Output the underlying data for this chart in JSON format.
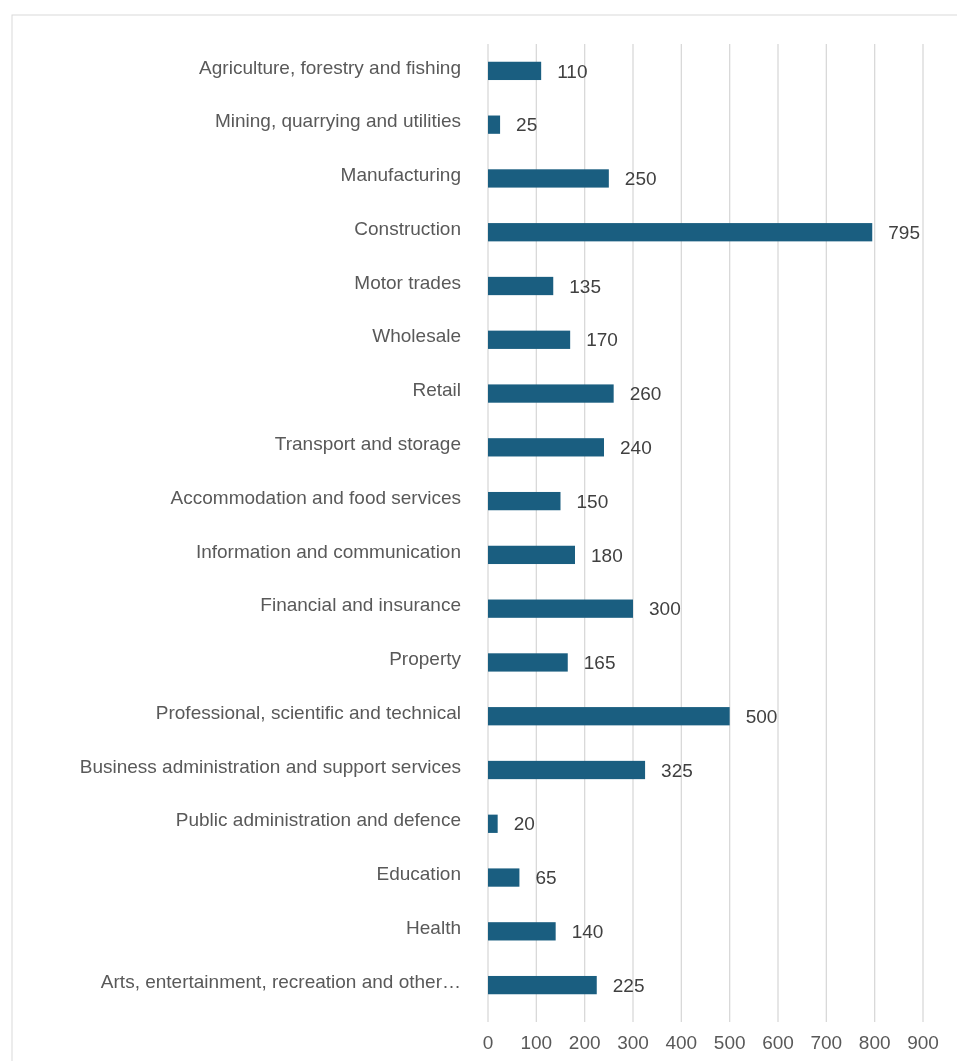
{
  "chart_data": {
    "type": "bar",
    "orientation": "horizontal",
    "categories": [
      "Agriculture, forestry and fishing",
      "Mining, quarrying and utilities",
      "Manufacturing",
      "Construction",
      "Motor trades",
      "Wholesale",
      "Retail",
      "Transport and storage",
      "Accommodation and food services",
      "Information and communication",
      "Financial and insurance",
      "Property",
      "Professional, scientific and technical",
      "Business administration and support services",
      "Public administration and defence",
      "Education",
      "Health",
      "Arts, entertainment, recreation and other…"
    ],
    "values": [
      110,
      25,
      250,
      795,
      135,
      170,
      260,
      240,
      150,
      180,
      300,
      165,
      500,
      325,
      20,
      65,
      140,
      225
    ],
    "color": "#1a5e80",
    "xlim": [
      0,
      900
    ],
    "xticks": [
      0,
      100,
      200,
      300,
      400,
      500,
      600,
      700,
      800,
      900
    ],
    "grid": "x",
    "data_labels": true
  }
}
